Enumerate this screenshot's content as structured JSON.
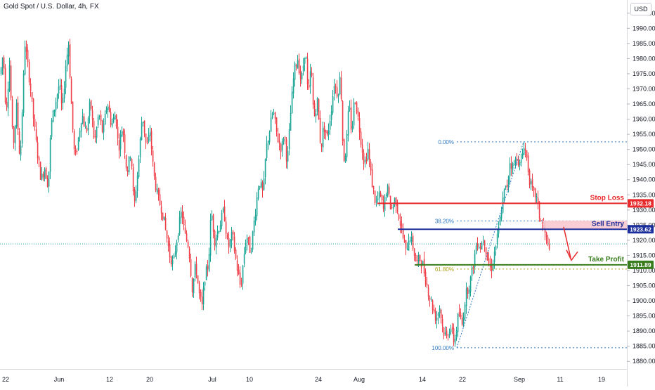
{
  "chart_data": {
    "type": "candlestick",
    "title": "Gold Spot / U.S. Dollar, 4h, FX",
    "currency": "USD",
    "ylim": [
      1877.5,
      1997.5
    ],
    "y_ticks": [
      1880,
      1885,
      1890,
      1895,
      1900,
      1905,
      1910,
      1915,
      1920,
      1925,
      1930,
      1935,
      1940,
      1945,
      1950,
      1955,
      1960,
      1965,
      1970,
      1975,
      1980,
      1985,
      1990,
      1995
    ],
    "x_ticks": [
      "22",
      "Jun",
      "12",
      "20",
      "Jul",
      "10",
      "24",
      "Aug",
      "14",
      "22",
      "Sep",
      "11",
      "19"
    ],
    "current_price_line": 1918.8,
    "levels": [
      {
        "name": "stop-loss",
        "label": "Stop Loss",
        "value": 1932.18,
        "tag": "1932.18",
        "color": "#e8282b"
      },
      {
        "name": "sell-entry",
        "label": "Sell Entry",
        "value": 1923.62,
        "tag": "1923.62",
        "color": "#1c2e9b"
      },
      {
        "name": "take-profit",
        "label": "Take Profit",
        "value": 1911.89,
        "tag": "1911.89",
        "color": "#3a7d1f"
      }
    ],
    "fib": [
      {
        "label": "0.00%",
        "value": 1952.5
      },
      {
        "label": "38.20%",
        "value": 1926.4
      },
      {
        "label": "61.80%",
        "value": 1910.5
      },
      {
        "label": "100.00%",
        "value": 1884.5
      }
    ],
    "price_path": [
      [
        0,
        1975
      ],
      [
        4,
        1982
      ],
      [
        8,
        1962
      ],
      [
        13,
        1978
      ],
      [
        18,
        1950
      ],
      [
        23,
        1964
      ],
      [
        28,
        1946
      ],
      [
        35,
        1985
      ],
      [
        42,
        1972
      ],
      [
        48,
        1958
      ],
      [
        52,
        1950
      ],
      [
        58,
        1940
      ],
      [
        63,
        1944
      ],
      [
        68,
        1938
      ],
      [
        72,
        1958
      ],
      [
        78,
        1965
      ],
      [
        84,
        1972
      ],
      [
        88,
        1962
      ],
      [
        93,
        1978
      ],
      [
        97,
        1985
      ],
      [
        102,
        1960
      ],
      [
        106,
        1946
      ],
      [
        110,
        1952
      ],
      [
        116,
        1962
      ],
      [
        122,
        1955
      ],
      [
        128,
        1966
      ],
      [
        134,
        1952
      ],
      [
        140,
        1962
      ],
      [
        146,
        1955
      ],
      [
        152,
        1966
      ],
      [
        158,
        1958
      ],
      [
        164,
        1962
      ],
      [
        168,
        1950
      ],
      [
        174,
        1958
      ],
      [
        180,
        1942
      ],
      [
        186,
        1950
      ],
      [
        190,
        1930
      ],
      [
        196,
        1944
      ],
      [
        202,
        1962
      ],
      [
        208,
        1950
      ],
      [
        213,
        1956
      ],
      [
        218,
        1942
      ],
      [
        224,
        1934
      ],
      [
        230,
        1930
      ],
      [
        236,
        1922
      ],
      [
        241,
        1915
      ],
      [
        246,
        1912
      ],
      [
        252,
        1922
      ],
      [
        258,
        1930
      ],
      [
        262,
        1922
      ],
      [
        268,
        1918
      ],
      [
        273,
        1904
      ],
      [
        278,
        1912
      ],
      [
        283,
        1902
      ],
      [
        287,
        1898
      ],
      [
        291,
        1908
      ],
      [
        296,
        1912
      ],
      [
        300,
        1930
      ],
      [
        305,
        1920
      ],
      [
        312,
        1925
      ],
      [
        318,
        1930
      ],
      [
        324,
        1917
      ],
      [
        330,
        1922
      ],
      [
        336,
        1912
      ],
      [
        342,
        1904
      ],
      [
        346,
        1914
      ],
      [
        350,
        1922
      ],
      [
        356,
        1916
      ],
      [
        362,
        1928
      ],
      [
        368,
        1940
      ],
      [
        374,
        1935
      ],
      [
        378,
        1950
      ],
      [
        382,
        1955
      ],
      [
        388,
        1963
      ],
      [
        394,
        1954
      ],
      [
        400,
        1950
      ],
      [
        404,
        1956
      ],
      [
        408,
        1945
      ],
      [
        413,
        1962
      ],
      [
        418,
        1976
      ],
      [
        423,
        1980
      ],
      [
        428,
        1972
      ],
      [
        434,
        1984
      ],
      [
        438,
        1966
      ],
      [
        442,
        1978
      ],
      [
        446,
        1960
      ],
      [
        451,
        1966
      ],
      [
        456,
        1950
      ],
      [
        460,
        1958
      ],
      [
        465,
        1954
      ],
      [
        470,
        1962
      ],
      [
        475,
        1972
      ],
      [
        480,
        1968
      ],
      [
        484,
        1975
      ],
      [
        488,
        1946
      ],
      [
        492,
        1950
      ],
      [
        496,
        1965
      ],
      [
        500,
        1955
      ],
      [
        504,
        1968
      ],
      [
        508,
        1962
      ],
      [
        512,
        1955
      ],
      [
        518,
        1945
      ],
      [
        523,
        1950
      ],
      [
        528,
        1940
      ],
      [
        534,
        1932
      ],
      [
        540,
        1935
      ],
      [
        545,
        1930
      ],
      [
        550,
        1938
      ],
      [
        556,
        1930
      ],
      [
        562,
        1934
      ],
      [
        567,
        1928
      ],
      [
        572,
        1922
      ],
      [
        577,
        1916
      ],
      [
        582,
        1922
      ],
      [
        587,
        1918
      ],
      [
        592,
        1912
      ],
      [
        596,
        1914
      ],
      [
        601,
        1912
      ],
      [
        606,
        1906
      ],
      [
        610,
        1902
      ],
      [
        615,
        1898
      ],
      [
        620,
        1894
      ],
      [
        625,
        1898
      ],
      [
        630,
        1890
      ],
      [
        635,
        1888
      ],
      [
        640,
        1892
      ],
      [
        646,
        1886
      ],
      [
        652,
        1896
      ],
      [
        657,
        1892
      ],
      [
        662,
        1902
      ],
      [
        668,
        1906
      ],
      [
        673,
        1912
      ],
      [
        678,
        1920
      ],
      [
        683,
        1918
      ],
      [
        688,
        1921
      ],
      [
        693,
        1914
      ],
      [
        698,
        1910
      ],
      [
        703,
        1916
      ],
      [
        708,
        1922
      ],
      [
        713,
        1930
      ],
      [
        717,
        1936
      ],
      [
        721,
        1938
      ],
      [
        725,
        1946
      ],
      [
        730,
        1944
      ],
      [
        735,
        1948
      ],
      [
        740,
        1944
      ],
      [
        745,
        1952
      ],
      [
        749,
        1947
      ],
      [
        753,
        1940
      ],
      [
        758,
        1935
      ],
      [
        762,
        1935
      ],
      [
        767,
        1928
      ],
      [
        771,
        1925
      ],
      [
        775,
        1922
      ],
      [
        779,
        1918
      ],
      [
        782,
        1919
      ]
    ]
  }
}
